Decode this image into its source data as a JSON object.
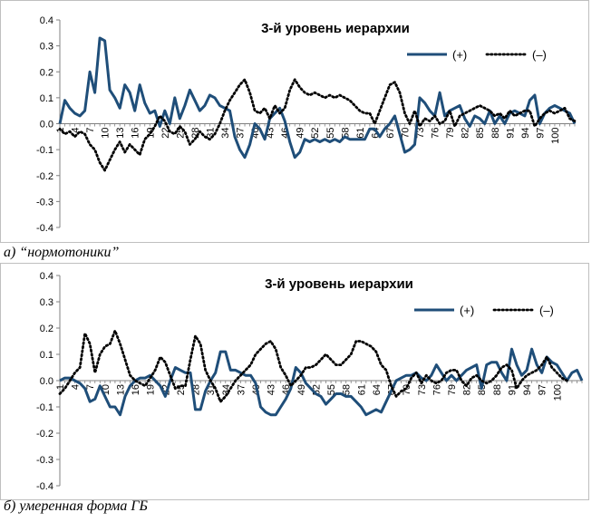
{
  "chart_data": [
    {
      "type": "line",
      "title": "3-й уровень иерархии",
      "legend": [
        "(+)",
        "(–)"
      ],
      "legend_position": "top-right",
      "ylim": [
        -0.4,
        0.4
      ],
      "yticks": [
        "0.4",
        "0.3",
        "0.2",
        "0.1",
        "0.0",
        "-0.1",
        "-0.2",
        "-0.3",
        "-0.4"
      ],
      "xticks": [
        "1",
        "4",
        "7",
        "10",
        "13",
        "16",
        "19",
        "22",
        "25",
        "28",
        "31",
        "34",
        "37",
        "40",
        "43",
        "46",
        "49",
        "52",
        "55",
        "58",
        "61",
        "64",
        "67",
        "70",
        "73",
        "76",
        "79",
        "82",
        "85",
        "88",
        "91",
        "94",
        "97",
        "100"
      ],
      "series": [
        {
          "name": "(+)",
          "style": "solid",
          "color": "#1f4e79",
          "values": [
            0.0,
            0.09,
            0.06,
            0.04,
            0.03,
            0.05,
            0.2,
            0.12,
            0.33,
            0.32,
            0.13,
            0.1,
            0.06,
            0.15,
            0.12,
            0.05,
            0.15,
            0.08,
            0.04,
            0.05,
            -0.01,
            0.05,
            0.0,
            0.1,
            0.02,
            0.07,
            0.13,
            0.09,
            0.05,
            0.07,
            0.11,
            0.1,
            0.07,
            0.06,
            0.05,
            -0.05,
            -0.1,
            -0.13,
            -0.08,
            0.0,
            -0.02,
            -0.06,
            0.02,
            0.04,
            0.06,
            0.01,
            -0.07,
            -0.13,
            -0.11,
            -0.06,
            -0.07,
            -0.06,
            -0.07,
            -0.06,
            -0.07,
            -0.06,
            -0.07,
            -0.05,
            -0.06,
            -0.06,
            -0.06,
            -0.06,
            -0.02,
            -0.02,
            -0.05,
            -0.02,
            0.0,
            0.03,
            -0.04,
            -0.11,
            -0.1,
            -0.08,
            0.1,
            0.08,
            0.05,
            0.03,
            0.12,
            0.03,
            0.05,
            0.06,
            0.07,
            0.02,
            -0.01,
            0.03,
            0.02,
            0.0,
            0.05,
            0.0,
            0.03,
            0.0,
            0.04,
            0.05,
            0.04,
            0.03,
            0.09,
            0.11,
            0.0,
            0.04,
            0.06,
            0.07,
            0.06,
            0.05,
            0.04,
            0.0
          ]
        },
        {
          "name": "(–)",
          "style": "dotted",
          "color": "#000000",
          "values": [
            -0.02,
            -0.04,
            -0.03,
            -0.05,
            -0.03,
            -0.04,
            -0.08,
            -0.1,
            -0.15,
            -0.18,
            -0.14,
            -0.1,
            -0.07,
            -0.11,
            -0.08,
            -0.1,
            -0.12,
            -0.06,
            -0.04,
            -0.01,
            0.03,
            0.01,
            -0.03,
            -0.04,
            -0.01,
            -0.03,
            -0.08,
            -0.06,
            -0.03,
            -0.05,
            -0.06,
            -0.04,
            0.0,
            0.05,
            0.09,
            0.12,
            0.15,
            0.17,
            0.12,
            0.05,
            0.04,
            0.06,
            0.02,
            0.07,
            0.04,
            0.06,
            0.13,
            0.17,
            0.14,
            0.12,
            0.11,
            0.12,
            0.11,
            0.1,
            0.11,
            0.1,
            0.11,
            0.1,
            0.09,
            0.07,
            0.05,
            0.04,
            0.04,
            0.0,
            0.05,
            0.1,
            0.15,
            0.16,
            0.12,
            0.04,
            0.0,
            0.05,
            -0.01,
            0.02,
            0.01,
            0.03,
            0.0,
            0.01,
            0.05,
            -0.01,
            0.03,
            0.04,
            0.05,
            0.06,
            0.07,
            0.06,
            0.05,
            0.03,
            0.04,
            0.02,
            0.05,
            0.03,
            0.04,
            0.05,
            0.05,
            -0.01,
            0.02,
            0.04,
            0.05,
            0.04,
            0.05,
            0.06,
            0.02,
            0.01
          ]
        }
      ]
    },
    {
      "type": "line",
      "title": "3-й уровень иерархии",
      "legend": [
        "(+)",
        "(–)"
      ],
      "legend_position": "top-right",
      "ylim": [
        -0.4,
        0.4
      ],
      "yticks": [
        "0.4",
        "0.3",
        "0.2",
        "0.1",
        "0.0",
        "-0.1",
        "-0.2",
        "-0.3",
        "-0.4"
      ],
      "xticks": [
        "1",
        "4",
        "7",
        "10",
        "13",
        "16",
        "19",
        "22",
        "25",
        "28",
        "31",
        "34",
        "37",
        "40",
        "43",
        "46",
        "49",
        "52",
        "55",
        "58",
        "61",
        "64",
        "67",
        "70",
        "73",
        "76",
        "79",
        "82",
        "85",
        "88",
        "91",
        "94",
        "97",
        "100"
      ],
      "series": [
        {
          "name": "(+)",
          "style": "solid",
          "color": "#1f4e79",
          "values": [
            0.0,
            0.01,
            0.01,
            0.0,
            -0.01,
            -0.03,
            -0.08,
            -0.07,
            -0.02,
            -0.06,
            -0.1,
            -0.1,
            -0.13,
            -0.06,
            -0.02,
            0.0,
            0.01,
            0.01,
            0.02,
            0.0,
            -0.02,
            -0.06,
            0.0,
            0.05,
            0.04,
            0.03,
            0.03,
            -0.11,
            -0.11,
            -0.04,
            0.0,
            0.03,
            0.11,
            0.11,
            0.04,
            0.04,
            0.03,
            0.02,
            0.02,
            -0.01,
            -0.1,
            -0.12,
            -0.13,
            -0.13,
            -0.1,
            -0.07,
            -0.03,
            0.05,
            0.03,
            -0.01,
            -0.03,
            -0.05,
            -0.06,
            -0.09,
            -0.07,
            -0.05,
            -0.05,
            -0.06,
            -0.06,
            -0.08,
            -0.1,
            -0.13,
            -0.12,
            -0.11,
            -0.12,
            -0.08,
            -0.04,
            0.0,
            0.01,
            0.02,
            0.02,
            0.03,
            0.01,
            0.0,
            0.02,
            0.06,
            0.03,
            0.0,
            0.02,
            0.0,
            0.02,
            0.04,
            0.05,
            0.06,
            -0.03,
            0.06,
            0.07,
            0.07,
            0.03,
            0.0,
            0.12,
            0.06,
            0.02,
            0.04,
            0.12,
            0.06,
            0.03,
            0.09,
            0.07,
            0.06,
            0.03,
            0.0,
            0.03,
            0.04,
            0.0
          ]
        },
        {
          "name": "(–)",
          "style": "dotted",
          "color": "#000000",
          "values": [
            -0.05,
            -0.03,
            0.0,
            0.03,
            0.05,
            0.18,
            0.14,
            0.03,
            0.1,
            0.13,
            0.14,
            0.19,
            0.14,
            0.08,
            0.02,
            0.0,
            -0.01,
            -0.02,
            0.01,
            0.04,
            0.09,
            0.07,
            0.02,
            -0.03,
            -0.02,
            -0.02,
            0.08,
            0.17,
            0.14,
            0.04,
            0.0,
            -0.03,
            -0.08,
            -0.06,
            -0.03,
            0.0,
            0.02,
            0.04,
            0.06,
            0.1,
            0.12,
            0.14,
            0.15,
            0.12,
            0.05,
            0.02,
            -0.02,
            0.0,
            0.02,
            0.05,
            0.05,
            0.06,
            0.08,
            0.1,
            0.08,
            0.06,
            0.06,
            0.08,
            0.1,
            0.15,
            0.15,
            0.14,
            0.13,
            0.11,
            0.06,
            0.04,
            -0.02,
            -0.06,
            -0.04,
            -0.03,
            0.01,
            0.03,
            -0.01,
            0.02,
            0.0,
            -0.01,
            0.0,
            0.03,
            0.04,
            0.04,
            0.0,
            -0.02,
            0.01,
            0.02,
            0.0,
            -0.01,
            0.0,
            0.02,
            0.05,
            0.06,
            0.04,
            -0.03,
            0.0,
            0.02,
            0.03,
            0.04,
            0.06,
            0.09,
            0.05,
            0.03,
            0.01,
            0.0
          ]
        }
      ]
    }
  ],
  "captions": {
    "a": "а)  “нормотоники”",
    "b": "б) умеренная форма ГБ"
  }
}
